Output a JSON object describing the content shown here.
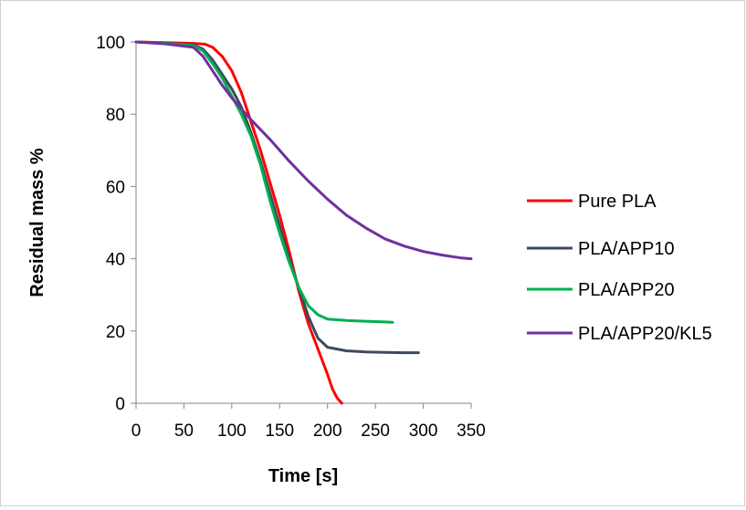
{
  "chart_data": {
    "type": "line",
    "title": "",
    "xlabel": "Time [s]",
    "ylabel": "Residual mass %",
    "xlim": [
      0,
      350
    ],
    "ylim": [
      0,
      100
    ],
    "xticks": [
      0,
      50,
      100,
      150,
      200,
      250,
      300,
      350
    ],
    "yticks": [
      0,
      20,
      40,
      60,
      80,
      100
    ],
    "grid": false,
    "legend_position": "right",
    "series": [
      {
        "name": "Pure PLA",
        "color": "#ff0000",
        "x": [
          0,
          30,
          60,
          72,
          80,
          90,
          100,
          110,
          120,
          130,
          140,
          150,
          160,
          170,
          180,
          190,
          200,
          205,
          210,
          215
        ],
        "y": [
          100,
          99.8,
          99.6,
          99.4,
          98.5,
          96,
          92,
          86,
          78,
          70,
          61,
          52,
          42,
          31,
          22,
          15,
          8,
          4,
          1.5,
          0
        ]
      },
      {
        "name": "PLA/APP10",
        "color": "#3d4a5c",
        "x": [
          0,
          30,
          60,
          70,
          80,
          90,
          100,
          110,
          120,
          130,
          140,
          150,
          160,
          170,
          180,
          190,
          200,
          220,
          240,
          260,
          280,
          295
        ],
        "y": [
          100,
          99.7,
          99.2,
          98,
          95,
          91,
          87,
          82,
          75,
          67,
          58,
          49,
          40,
          32,
          24,
          18,
          15.5,
          14.5,
          14.2,
          14.1,
          14,
          14
        ]
      },
      {
        "name": "PLA/APP20",
        "color": "#00b050",
        "x": [
          0,
          30,
          60,
          70,
          80,
          90,
          100,
          110,
          120,
          130,
          140,
          150,
          160,
          170,
          180,
          190,
          200,
          220,
          240,
          260,
          268
        ],
        "y": [
          100,
          99.6,
          99,
          97.5,
          94,
          90,
          85,
          80,
          74,
          66,
          56,
          47,
          39,
          32,
          27,
          24.5,
          23.3,
          22.9,
          22.7,
          22.5,
          22.4
        ]
      },
      {
        "name": "PLA/APP20/KL5",
        "color": "#7030a0",
        "x": [
          0,
          30,
          60,
          70,
          80,
          90,
          100,
          110,
          120,
          140,
          160,
          180,
          200,
          220,
          240,
          260,
          280,
          300,
          320,
          340,
          350
        ],
        "y": [
          100,
          99.5,
          98.5,
          96,
          92,
          88,
          84.5,
          81.5,
          78.5,
          73,
          67,
          61.5,
          56.5,
          52,
          48.5,
          45.5,
          43.5,
          42,
          41,
          40.2,
          40
        ]
      }
    ]
  }
}
